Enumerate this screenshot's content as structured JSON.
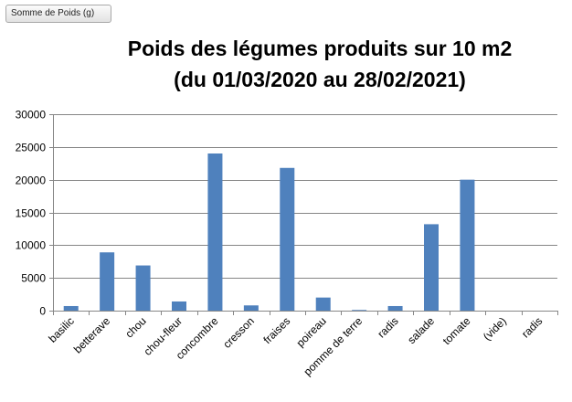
{
  "field_button": {
    "label": "Somme de Poids (g)"
  },
  "chart_data": {
    "type": "bar",
    "title": "Poids des légumes produits sur 10 m2",
    "subtitle": "(du 01/03/2020 au 28/02/2021)",
    "xlabel": "",
    "ylabel": "",
    "categories": [
      "basilic",
      "betterave",
      "chou",
      "chou-fleur",
      "concombre",
      "cresson",
      "fraises",
      "poireau",
      "pomme de terre",
      "radis",
      "salade",
      "tomate",
      "(vide)",
      "radis"
    ],
    "values": [
      700,
      8900,
      6900,
      1400,
      24000,
      800,
      21800,
      2000,
      100,
      700,
      13200,
      20000,
      0,
      0
    ],
    "ylim": [
      0,
      30000
    ],
    "yticks": [
      0,
      5000,
      10000,
      15000,
      20000,
      25000,
      30000
    ],
    "grid": true,
    "legend": "none",
    "bar_color": "#4f81bd",
    "grid_color": "#868686"
  }
}
